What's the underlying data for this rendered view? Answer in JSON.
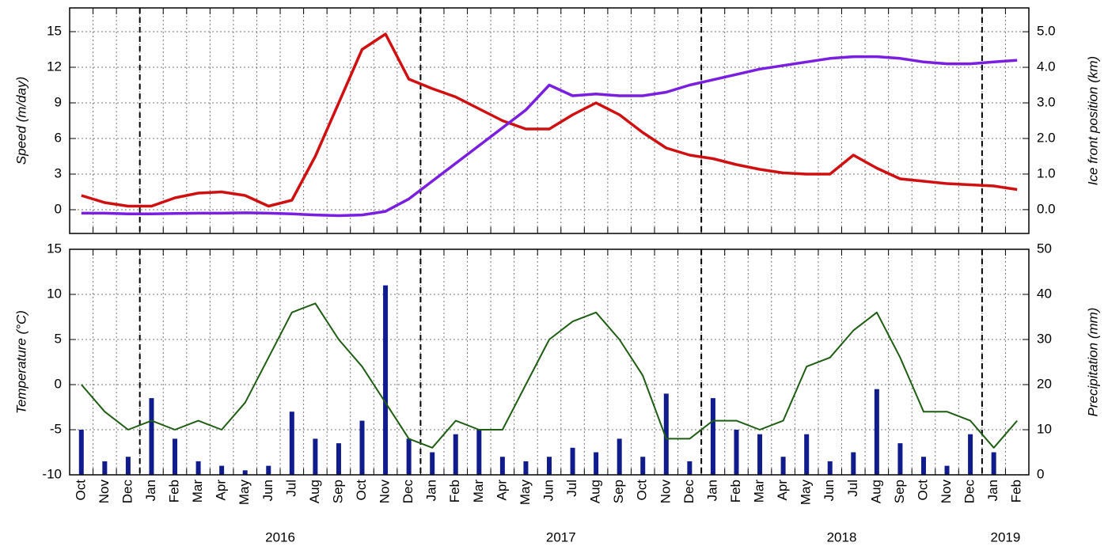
{
  "chart_data": [
    {
      "type": "line",
      "ylabel": "Speed (m/day)",
      "y2label": "Ice front position (km)",
      "ylim": [
        -2,
        17
      ],
      "yticks": [
        0,
        3,
        6,
        9,
        12,
        15
      ],
      "y2lim": [
        -0.67,
        5.67
      ],
      "y2ticks": [
        {
          "value": 0,
          "label": "0.0"
        },
        {
          "value": 1,
          "label": "1.0"
        },
        {
          "value": 2,
          "label": "2.0"
        },
        {
          "value": 3,
          "label": "3.0"
        },
        {
          "value": 4,
          "label": "4.0"
        },
        {
          "value": 5,
          "label": "5.0"
        }
      ],
      "grid": true,
      "series": [
        {
          "name": "Speed",
          "color": "#d01010",
          "values": [
            1.2,
            0.6,
            0.3,
            0.3,
            1.0,
            1.4,
            1.5,
            1.2,
            0.3,
            0.8,
            4.5,
            9,
            13.5,
            14.8,
            11,
            10.2,
            9.5,
            8.5,
            7.5,
            6.8,
            6.8,
            8,
            9,
            8,
            6.5,
            5.2,
            4.6,
            4.3,
            3.8,
            3.4,
            3.1,
            3.0,
            3.0,
            4.6,
            3.5,
            2.6,
            2.4,
            2.2,
            2.1,
            2.0,
            1.7
          ]
        },
        {
          "name": "Ice front position",
          "color": "#7a1ee0",
          "axis": "y2",
          "values": [
            -0.1,
            -0.1,
            -0.12,
            -0.12,
            -0.11,
            -0.1,
            -0.1,
            -0.09,
            -0.1,
            -0.12,
            -0.15,
            -0.17,
            -0.15,
            -0.05,
            0.3,
            0.8,
            1.3,
            1.8,
            2.3,
            2.8,
            3.5,
            3.2,
            3.25,
            3.2,
            3.2,
            3.3,
            3.5,
            3.65,
            3.8,
            3.95,
            4.05,
            4.15,
            4.25,
            4.3,
            4.3,
            4.25,
            4.15,
            4.1,
            4.1,
            4.15,
            4.2
          ]
        }
      ]
    },
    {
      "type": "combo",
      "ylabel": "Temperature (°C)",
      "y2label": "Precipitation (mm)",
      "ylim": [
        -10,
        15
      ],
      "yticks": [
        -10,
        -5,
        0,
        5,
        10,
        15
      ],
      "y2lim": [
        0,
        50
      ],
      "y2ticks": [
        0,
        10,
        20,
        30,
        40,
        50
      ],
      "grid": true,
      "categories": [
        "Oct",
        "Nov",
        "Dec",
        "Jan",
        "Feb",
        "Mar",
        "Apr",
        "May",
        "Jun",
        "Jul",
        "Aug",
        "Sep",
        "Oct",
        "Nov",
        "Dec",
        "Jan",
        "Feb",
        "Mar",
        "Apr",
        "May",
        "Jun",
        "Jul",
        "Aug",
        "Sep",
        "Oct",
        "Nov",
        "Dec",
        "Jan",
        "Feb",
        "Mar",
        "Apr",
        "May",
        "Jun",
        "Jul",
        "Aug",
        "Sep",
        "Oct",
        "Nov",
        "Dec",
        "Jan",
        "Feb"
      ],
      "years": [
        "2016",
        "2017",
        "2018",
        "2019"
      ],
      "series": [
        {
          "name": "Precipitation",
          "type": "bar",
          "color": "#101c8c",
          "axis": "y2",
          "values": [
            10,
            3,
            4,
            17,
            8,
            3,
            2,
            1,
            2,
            14,
            8,
            7,
            12,
            42,
            8,
            5,
            9,
            10,
            4,
            3,
            4,
            6,
            5,
            8,
            4,
            18,
            3,
            17,
            10,
            9,
            4,
            9,
            3,
            5,
            19,
            7,
            4,
            2,
            9,
            5,
            0
          ]
        },
        {
          "name": "Temperature",
          "type": "line",
          "color": "#1e5e12",
          "values": [
            0,
            -3,
            -5,
            -4,
            -5,
            -4,
            -5,
            -2,
            3,
            8,
            9,
            5,
            2,
            -2,
            -6,
            -7,
            -4,
            -5,
            -5,
            0,
            5,
            7,
            8,
            5,
            1,
            -6,
            -6,
            -4,
            -4,
            -5,
            -4,
            2,
            3,
            6,
            8,
            3,
            -3,
            -3,
            -4,
            -7,
            -4
          ]
        }
      ]
    }
  ]
}
